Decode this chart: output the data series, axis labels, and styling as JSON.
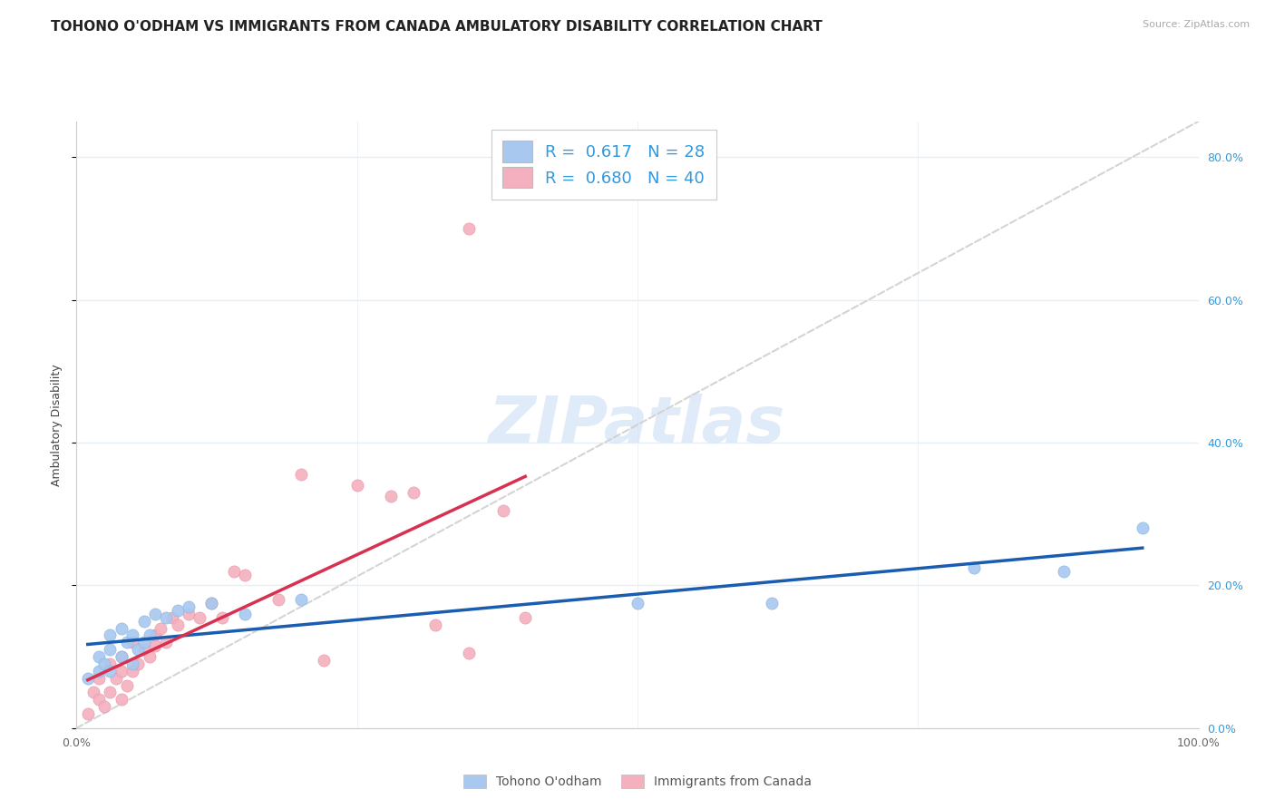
{
  "title": "TOHONO O'ODHAM VS IMMIGRANTS FROM CANADA AMBULATORY DISABILITY CORRELATION CHART",
  "source": "Source: ZipAtlas.com",
  "ylabel": "Ambulatory Disability",
  "xlim": [
    0.0,
    1.0
  ],
  "ylim": [
    0.0,
    0.85
  ],
  "yticks": [
    0.0,
    0.2,
    0.4,
    0.6,
    0.8
  ],
  "ytick_labels": [
    "0.0%",
    "20.0%",
    "40.0%",
    "60.0%",
    "80.0%"
  ],
  "xtick_labels": [
    "0.0%",
    "",
    "",
    "",
    "100.0%"
  ],
  "tohono_color": "#a8c8f0",
  "canada_color": "#f5b0bf",
  "tohono_line_color": "#1a5cb0",
  "canada_line_color": "#d83050",
  "diagonal_color": "#d0d0d0",
  "background_color": "#ffffff",
  "grid_color": "#e5edf5",
  "watermark": "ZIPatlas",
  "tohono_x": [
    0.01,
    0.02,
    0.02,
    0.025,
    0.03,
    0.03,
    0.03,
    0.04,
    0.04,
    0.045,
    0.05,
    0.05,
    0.055,
    0.06,
    0.06,
    0.065,
    0.07,
    0.08,
    0.09,
    0.1,
    0.12,
    0.15,
    0.2,
    0.5,
    0.62,
    0.8,
    0.88,
    0.95
  ],
  "tohono_y": [
    0.07,
    0.08,
    0.1,
    0.09,
    0.08,
    0.11,
    0.13,
    0.1,
    0.14,
    0.12,
    0.09,
    0.13,
    0.11,
    0.12,
    0.15,
    0.13,
    0.16,
    0.155,
    0.165,
    0.17,
    0.175,
    0.16,
    0.18,
    0.175,
    0.175,
    0.225,
    0.22,
    0.28
  ],
  "canada_x": [
    0.01,
    0.015,
    0.02,
    0.02,
    0.025,
    0.03,
    0.03,
    0.035,
    0.04,
    0.04,
    0.04,
    0.045,
    0.05,
    0.05,
    0.055,
    0.06,
    0.065,
    0.07,
    0.07,
    0.075,
    0.08,
    0.085,
    0.09,
    0.1,
    0.11,
    0.12,
    0.13,
    0.14,
    0.15,
    0.18,
    0.2,
    0.22,
    0.25,
    0.28,
    0.3,
    0.32,
    0.35,
    0.38,
    0.4,
    0.35
  ],
  "canada_y": [
    0.02,
    0.05,
    0.04,
    0.07,
    0.03,
    0.05,
    0.09,
    0.07,
    0.04,
    0.08,
    0.1,
    0.06,
    0.08,
    0.12,
    0.09,
    0.11,
    0.1,
    0.13,
    0.115,
    0.14,
    0.12,
    0.155,
    0.145,
    0.16,
    0.155,
    0.175,
    0.155,
    0.22,
    0.215,
    0.18,
    0.355,
    0.095,
    0.34,
    0.325,
    0.33,
    0.145,
    0.105,
    0.305,
    0.155,
    0.7
  ],
  "title_fontsize": 11,
  "axis_fontsize": 9,
  "tick_fontsize": 9,
  "legend_fontsize": 13
}
